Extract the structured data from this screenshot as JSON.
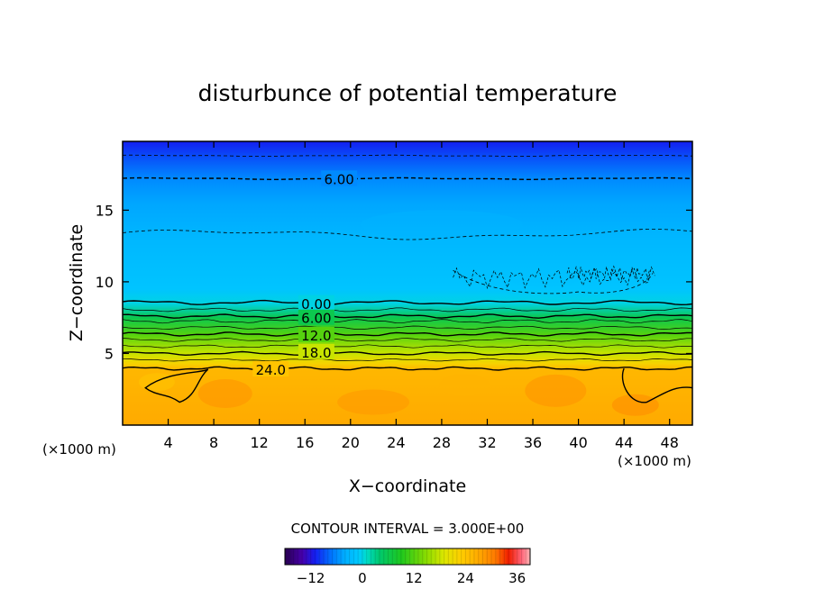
{
  "chart_data": {
    "type": "heatmap",
    "title": "disturbunce of potential temperature",
    "xlabel": "X−coordinate",
    "ylabel": "Z−coordinate",
    "x_unit": "(×1000 m)",
    "y_unit": "(×1000 m)",
    "xlim": [
      0,
      50
    ],
    "ylim": [
      0,
      19.8
    ],
    "xticks": [
      4,
      8,
      12,
      16,
      20,
      24,
      28,
      32,
      36,
      40,
      44,
      48
    ],
    "yticks": [
      5,
      10,
      15
    ],
    "contour_interval_text": "CONTOUR INTERVAL = 3.000E+00",
    "contour_labels": [
      {
        "text": "6.00",
        "x": 19,
        "z": 17.2,
        "sign": "negative"
      },
      {
        "text": "0.00",
        "x": 17,
        "z": 8.5,
        "sign": "zero"
      },
      {
        "text": "6.00",
        "x": 17,
        "z": 7.5,
        "sign": "positive"
      },
      {
        "text": "12.0",
        "x": 17,
        "z": 6.3,
        "sign": "positive"
      },
      {
        "text": "18.0",
        "x": 17,
        "z": 5.1,
        "sign": "positive"
      },
      {
        "text": "24.0",
        "x": 13,
        "z": 3.9,
        "sign": "positive"
      }
    ],
    "colorbar": {
      "range": [
        -18,
        39
      ],
      "ticks": [
        "−12",
        "0",
        "12",
        "24",
        "36"
      ],
      "tick_values": [
        -12,
        0,
        12,
        24,
        36
      ]
    },
    "field_profile": [
      {
        "z": 0,
        "value": 27
      },
      {
        "z": 3.9,
        "value": 25.5
      },
      {
        "z": 4.3,
        "value": 22
      },
      {
        "z": 5.0,
        "value": 18
      },
      {
        "z": 6.3,
        "value": 12
      },
      {
        "z": 7.5,
        "value": 6
      },
      {
        "z": 8.5,
        "value": 0
      },
      {
        "z": 9.5,
        "value": -1.5
      },
      {
        "z": 13.0,
        "value": -3
      },
      {
        "z": 15.5,
        "value": -4.5
      },
      {
        "z": 17.2,
        "value": -6
      },
      {
        "z": 18.8,
        "value": -9
      },
      {
        "z": 19.8,
        "value": -11
      }
    ],
    "grid": false,
    "legend": "colorbar bottom-center"
  }
}
